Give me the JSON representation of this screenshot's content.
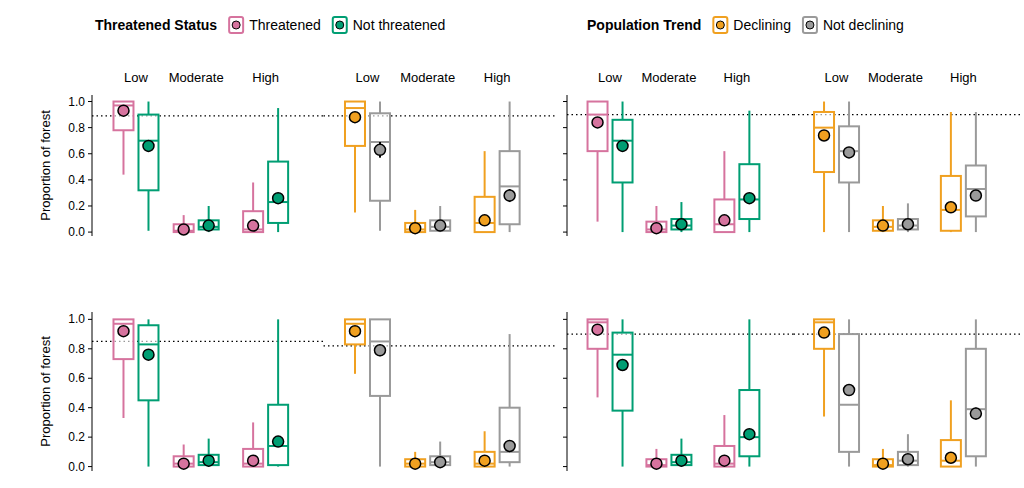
{
  "chart_data": {
    "type": "box",
    "y_label": "Proportion of forest",
    "legend": "top",
    "categories": [
      "Low",
      "Moderate",
      "High"
    ],
    "ylim": [
      -0.03,
      1.05
    ],
    "yticks": [
      {
        "value": 0,
        "label": "0.0"
      },
      {
        "value": 0.2,
        "label": "0.2"
      },
      {
        "value": 0.4,
        "label": "0.4"
      },
      {
        "value": 0.6,
        "label": "0.6"
      },
      {
        "value": 0.8,
        "label": "0.8"
      },
      {
        "value": 1,
        "label": "1.0"
      }
    ],
    "groups": [
      {
        "title": "Threatened Status",
        "series_names": [
          "Threatened",
          "Not threatened"
        ],
        "colors": [
          "#d6739e",
          "#009e73"
        ]
      },
      {
        "title": "Population Trend",
        "series_names": [
          "Declining",
          "Not declining"
        ],
        "colors": [
          "#f0a020",
          "#9a9a9a"
        ]
      }
    ],
    "panels": [
      {
        "reference": [
          0.89,
          0.89
        ],
        "series": [
          {
            "values": [
              0.93,
              0.02,
              0.05
            ],
            "error": [
              0.02,
              0.005,
              0.01
            ],
            "whisker_low": [
              0.44,
              0,
              0
            ],
            "q1": [
              0.78,
              0,
              0
            ],
            "median": [
              0.97,
              0.01,
              0.02
            ],
            "q3": [
              1.0,
              0.06,
              0.16
            ],
            "whisker_high": [
              1.0,
              0.13,
              0.38
            ]
          },
          {
            "values": [
              0.66,
              0.05,
              0.26
            ],
            "error": [
              0.02,
              0.005,
              0.03
            ],
            "whisker_low": [
              0.01,
              0,
              0
            ],
            "q1": [
              0.32,
              0.02,
              0.07
            ],
            "median": [
              0.7,
              0.04,
              0.23
            ],
            "q3": [
              0.9,
              0.09,
              0.54
            ],
            "whisker_high": [
              1.0,
              0.2,
              0.95
            ]
          },
          {
            "values": [
              0.88,
              0.03,
              0.09
            ],
            "error": [
              0.02,
              0.005,
              0.02
            ],
            "whisker_low": [
              0.15,
              0,
              0
            ],
            "q1": [
              0.66,
              0,
              0
            ],
            "median": [
              0.95,
              0.02,
              0.07
            ],
            "q3": [
              1.0,
              0.07,
              0.27
            ],
            "whisker_high": [
              1.0,
              0.17,
              0.62
            ]
          },
          {
            "values": [
              0.63,
              0.05,
              0.28
            ],
            "error": [
              0.06,
              0.01,
              0.05
            ],
            "whisker_low": [
              0.01,
              0,
              0
            ],
            "q1": [
              0.24,
              0.01,
              0.06
            ],
            "median": [
              0.69,
              0.04,
              0.35
            ],
            "q3": [
              0.91,
              0.09,
              0.62
            ],
            "whisker_high": [
              1.0,
              0.2,
              1.0
            ]
          }
        ]
      },
      {
        "reference": [
          0.9,
          0.9
        ],
        "series": [
          {
            "values": [
              0.84,
              0.03,
              0.09
            ],
            "error": [
              0.02,
              0.005,
              0.01
            ],
            "whisker_low": [
              0.08,
              0,
              0
            ],
            "q1": [
              0.62,
              0,
              0
            ],
            "median": [
              0.9,
              0.02,
              0.06
            ],
            "q3": [
              1.0,
              0.08,
              0.25
            ],
            "whisker_high": [
              1.0,
              0.2,
              0.62
            ]
          },
          {
            "values": [
              0.66,
              0.06,
              0.26
            ],
            "error": [
              0.01,
              0.005,
              0.01
            ],
            "whisker_low": [
              0,
              0,
              0
            ],
            "q1": [
              0.38,
              0.02,
              0.1
            ],
            "median": [
              0.7,
              0.05,
              0.25
            ],
            "q3": [
              0.86,
              0.1,
              0.52
            ],
            "whisker_high": [
              1.0,
              0.23,
              0.93
            ]
          },
          {
            "values": [
              0.74,
              0.05,
              0.19
            ],
            "error": [
              0.01,
              0.005,
              0.01
            ],
            "whisker_low": [
              0,
              0,
              0
            ],
            "q1": [
              0.46,
              0.01,
              0.01
            ],
            "median": [
              0.8,
              0.04,
              0.17
            ],
            "q3": [
              0.92,
              0.09,
              0.43
            ],
            "whisker_high": [
              1.0,
              0.2,
              0.92
            ]
          },
          {
            "values": [
              0.61,
              0.06,
              0.28
            ],
            "error": [
              0.02,
              0.005,
              0.02
            ],
            "whisker_low": [
              0,
              0,
              0
            ],
            "q1": [
              0.38,
              0.02,
              0.12
            ],
            "median": [
              0.62,
              0.05,
              0.33
            ],
            "q3": [
              0.81,
              0.1,
              0.51
            ],
            "whisker_high": [
              1.0,
              0.22,
              0.92
            ]
          }
        ]
      },
      {
        "reference": [
          0.85,
          0.82
        ],
        "series": [
          {
            "values": [
              0.92,
              0.02,
              0.04
            ],
            "error": [
              0.02,
              0.005,
              0.01
            ],
            "whisker_low": [
              0.33,
              0,
              0
            ],
            "q1": [
              0.73,
              0,
              0
            ],
            "median": [
              0.97,
              0.02,
              0.02
            ],
            "q3": [
              1.0,
              0.07,
              0.12
            ],
            "whisker_high": [
              1.0,
              0.15,
              0.3
            ]
          },
          {
            "values": [
              0.76,
              0.04,
              0.17
            ],
            "error": [
              0.02,
              0.005,
              0.02
            ],
            "whisker_low": [
              0,
              0,
              0
            ],
            "q1": [
              0.45,
              0.01,
              0.01
            ],
            "median": [
              0.83,
              0.03,
              0.14
            ],
            "q3": [
              0.96,
              0.08,
              0.42
            ],
            "whisker_high": [
              1.0,
              0.19,
              1.0
            ]
          },
          {
            "values": [
              0.92,
              0.02,
              0.04
            ],
            "error": [
              0.03,
              0.005,
              0.01
            ],
            "whisker_low": [
              0.63,
              0,
              0
            ],
            "q1": [
              0.83,
              0,
              0
            ],
            "median": [
              0.97,
              0.02,
              0.02
            ],
            "q3": [
              1.0,
              0.05,
              0.1
            ],
            "whisker_high": [
              1.0,
              0.1,
              0.24
            ]
          },
          {
            "values": [
              0.79,
              0.03,
              0.14
            ],
            "error": [
              0.04,
              0.005,
              0.03
            ],
            "whisker_low": [
              0,
              0,
              0
            ],
            "q1": [
              0.48,
              0.01,
              0.03
            ],
            "median": [
              0.85,
              0.03,
              0.1
            ],
            "q3": [
              1.0,
              0.07,
              0.4
            ],
            "whisker_high": [
              1.0,
              0.17,
              0.9
            ]
          }
        ]
      },
      {
        "reference": [
          0.9,
          0.9
        ],
        "series": [
          {
            "values": [
              0.93,
              0.02,
              0.04
            ],
            "error": [
              0.01,
              0.005,
              0.01
            ],
            "whisker_low": [
              0.47,
              0,
              0
            ],
            "q1": [
              0.8,
              0,
              0
            ],
            "median": [
              0.98,
              0.01,
              0.02
            ],
            "q3": [
              1.0,
              0.05,
              0.14
            ],
            "whisker_high": [
              1.0,
              0.12,
              0.35
            ]
          },
          {
            "values": [
              0.69,
              0.04,
              0.22
            ],
            "error": [
              0.01,
              0.005,
              0.01
            ],
            "whisker_low": [
              0,
              0,
              0
            ],
            "q1": [
              0.38,
              0.01,
              0.07
            ],
            "median": [
              0.76,
              0.03,
              0.2
            ],
            "q3": [
              0.91,
              0.08,
              0.52
            ],
            "whisker_high": [
              1.0,
              0.19,
              1.0
            ]
          },
          {
            "values": [
              0.91,
              0.02,
              0.06
            ],
            "error": [
              0.02,
              0.005,
              0.01
            ],
            "whisker_low": [
              0.34,
              0,
              0
            ],
            "q1": [
              0.8,
              0,
              0
            ],
            "median": [
              0.98,
              0.01,
              0.04
            ],
            "q3": [
              1.0,
              0.05,
              0.18
            ],
            "whisker_high": [
              1.0,
              0.12,
              0.45
            ]
          },
          {
            "values": [
              0.52,
              0.05,
              0.36
            ],
            "error": [
              0.04,
              0.01,
              0.04
            ],
            "whisker_low": [
              0,
              0,
              0
            ],
            "q1": [
              0.1,
              0.01,
              0.07
            ],
            "median": [
              0.42,
              0.04,
              0.39
            ],
            "q3": [
              0.9,
              0.1,
              0.8
            ],
            "whisker_high": [
              1.0,
              0.22,
              1.0
            ]
          }
        ]
      }
    ]
  }
}
